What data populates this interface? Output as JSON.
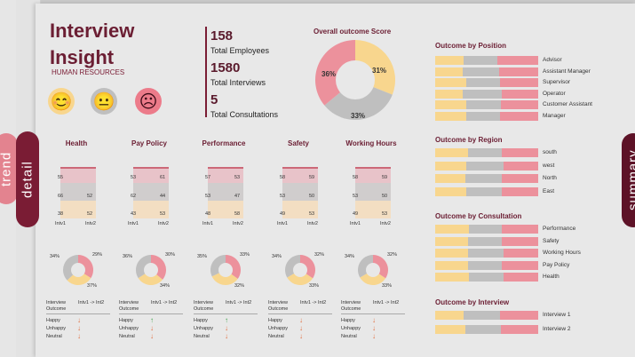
{
  "tabs": {
    "trend": "trend",
    "detail": "detail",
    "summary": "summary"
  },
  "header": {
    "title_line1": "Interview",
    "title_line2": "Insight",
    "subtitle": "HUMAN RESOURCES"
  },
  "faces": {
    "happy": "😊",
    "neutral": "😐",
    "unhappy": "☹"
  },
  "kpis": [
    {
      "value": "158",
      "label": "Total Employees"
    },
    {
      "value": "1580",
      "label": "Total Interviews"
    },
    {
      "value": "5",
      "label": "Total Consultations"
    }
  ],
  "overall": {
    "title": "Overall outcome Score",
    "slices": [
      {
        "label": "31%",
        "value": 31
      },
      {
        "label": "33%",
        "value": 33
      },
      {
        "label": "36%",
        "value": 36
      }
    ]
  },
  "categories": [
    {
      "name": "Health",
      "top": [
        "55",
        ""
      ],
      "mid": [
        "66",
        "52"
      ],
      "bot": [
        "38",
        "52"
      ],
      "pcts": [
        "34%",
        "29%",
        "37%"
      ]
    },
    {
      "name": "Pay Policy",
      "top": [
        "53",
        "61"
      ],
      "mid": [
        "62",
        "44"
      ],
      "bot": [
        "43",
        "53"
      ],
      "pcts": [
        "36%",
        "30%",
        "34%"
      ]
    },
    {
      "name": "Performance",
      "top": [
        "57",
        "53"
      ],
      "mid": [
        "53",
        "47"
      ],
      "bot": [
        "48",
        "58"
      ],
      "pcts": [
        "35%",
        "33%",
        "32%"
      ]
    },
    {
      "name": "Safety",
      "top": [
        "58",
        "59"
      ],
      "mid": [
        "53",
        "50"
      ],
      "bot": [
        "49",
        "53"
      ],
      "pcts": [
        "34%",
        "32%",
        "33%"
      ]
    },
    {
      "name": "Working Hours",
      "top": [
        "58",
        "59"
      ],
      "mid": [
        "53",
        "50"
      ],
      "bot": [
        "49",
        "53"
      ],
      "pcts": [
        "34%",
        "32%",
        "33%"
      ]
    }
  ],
  "intv_labels": {
    "a": "Intv1",
    "b": "Intv2"
  },
  "trend_table": {
    "col1": "Interview Outcome",
    "col2": "Intv1 -> Int2",
    "rows": [
      "Happy",
      "Unhappy",
      "Neutral"
    ]
  },
  "sections": {
    "position": {
      "title": "Outcome by Position",
      "items": [
        "Advisor",
        "Assistant Manager",
        "Supervisor",
        "Operator",
        "Customer Assistant",
        "Manager"
      ]
    },
    "region": {
      "title": "Outcome by Region",
      "items": [
        "south",
        "west",
        "North",
        "East"
      ]
    },
    "consultation": {
      "title": "Outcome by Consultation",
      "items": [
        "Performance",
        "Safety",
        "Working Hours",
        "Pay Policy",
        "Health"
      ]
    },
    "interview": {
      "title": "Outcome by Interview",
      "items": [
        "Interview 1",
        "Interview 2"
      ]
    }
  },
  "colors": {
    "happy": "#f8d68e",
    "neutral": "#bfbfbf",
    "unhappy": "#ec919c",
    "accent": "#7a1c34"
  }
}
